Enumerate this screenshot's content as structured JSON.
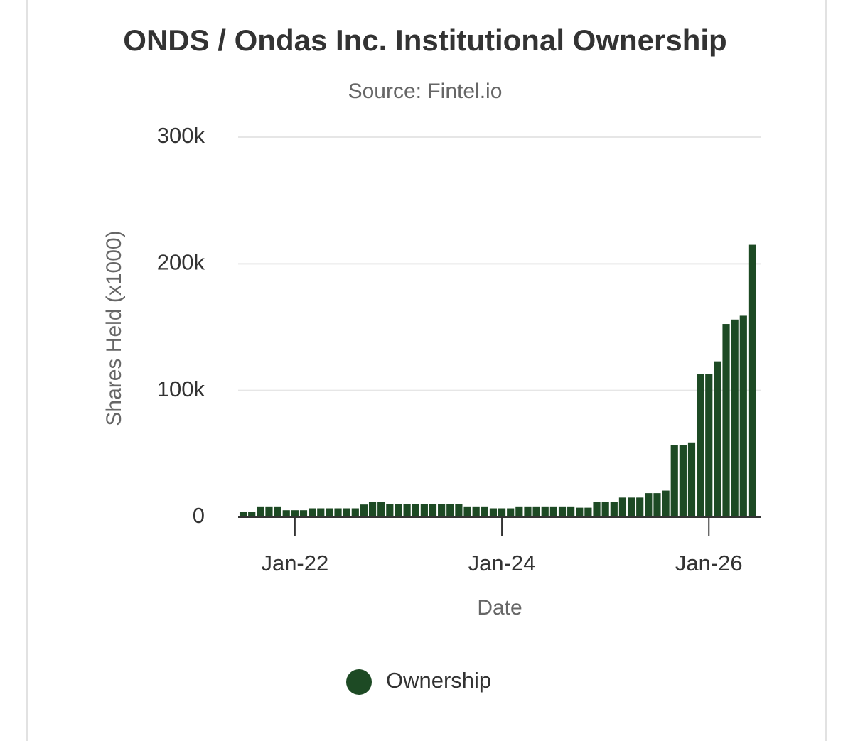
{
  "chart_data": {
    "type": "bar",
    "title": "ONDS / Ondas Inc. Institutional Ownership",
    "subtitle": "Source: Fintel.io",
    "y_label": "Shares Held (x1000)",
    "x_label": "Date",
    "categories": [
      null,
      null,
      null,
      null,
      null,
      null,
      "Jan-22",
      null,
      null,
      null,
      null,
      null,
      null,
      null,
      null,
      null,
      null,
      null,
      null,
      null,
      null,
      null,
      null,
      null,
      null,
      null,
      null,
      null,
      null,
      null,
      "Jan-24",
      null,
      null,
      null,
      null,
      null,
      null,
      null,
      null,
      null,
      null,
      null,
      null,
      null,
      null,
      null,
      null,
      null,
      null,
      null,
      null,
      null,
      null,
      null,
      "Jan-26",
      null,
      null,
      null,
      null,
      null
    ],
    "series": [
      {
        "name": "Ownership",
        "color": "#1d4a24",
        "values": [
          4000,
          4000,
          8500,
          8500,
          8500,
          5500,
          5500,
          5500,
          7000,
          7000,
          7000,
          7000,
          7000,
          7000,
          10000,
          12000,
          12000,
          10500,
          10500,
          10500,
          10500,
          10500,
          10500,
          10500,
          10500,
          10500,
          8500,
          8500,
          8500,
          7000,
          7000,
          7000,
          8500,
          8500,
          8500,
          8500,
          8500,
          8500,
          8500,
          7500,
          7500,
          12000,
          12000,
          12000,
          15500,
          15500,
          15500,
          19000,
          19000,
          21000,
          57000,
          57000,
          59000,
          113000,
          113000,
          123000,
          152500,
          156000,
          159000,
          215000
        ]
      }
    ],
    "ylim": [
      0,
      300000
    ],
    "yticks": [
      0,
      {
        "value": 100000,
        "label": "100k"
      },
      {
        "value": 200000,
        "label": "200k"
      },
      {
        "value": 300000,
        "label": "300k"
      }
    ],
    "grid": true,
    "legend": "bottom"
  }
}
